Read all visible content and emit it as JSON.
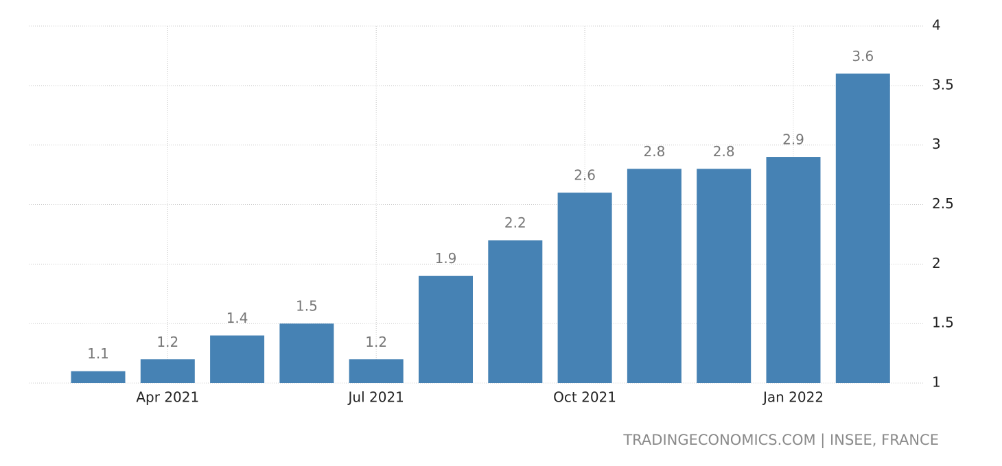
{
  "chart_data": {
    "type": "bar",
    "categories": [
      null,
      "Apr 2021",
      null,
      null,
      "Jul 2021",
      null,
      null,
      "Oct 2021",
      null,
      null,
      "Jan 2022",
      null
    ],
    "values": [
      1.1,
      1.2,
      1.4,
      1.5,
      1.2,
      1.9,
      2.2,
      2.6,
      2.8,
      2.8,
      2.9,
      3.6
    ],
    "color": "#4682b4",
    "ylim": [
      1,
      4
    ],
    "yticks": [
      1,
      1.5,
      2,
      2.5,
      3,
      3.5,
      4
    ],
    "grid": true,
    "source": "TRADINGECONOMICS.COM | INSEE, FRANCE"
  }
}
